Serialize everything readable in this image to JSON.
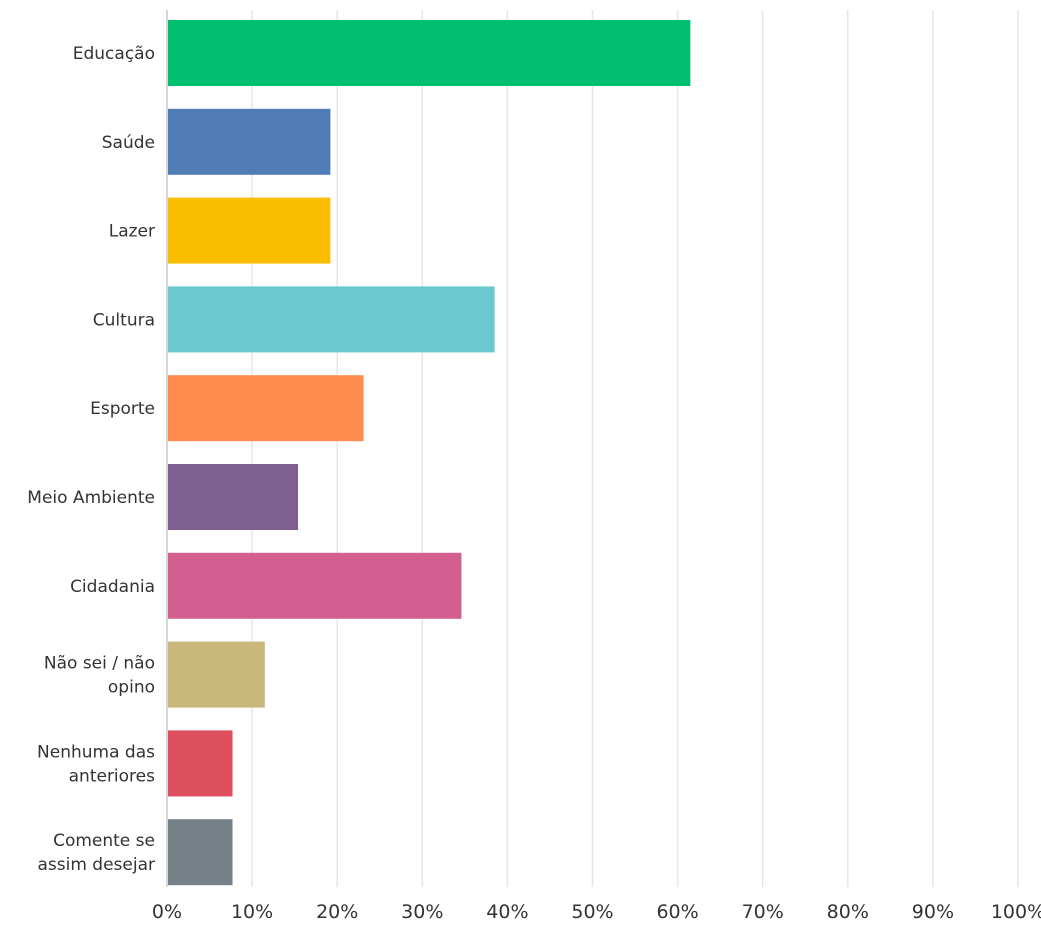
{
  "chart_data": {
    "type": "bar",
    "orientation": "horizontal",
    "categories": [
      [
        "Educação"
      ],
      [
        "Saúde"
      ],
      [
        "Lazer"
      ],
      [
        "Cultura"
      ],
      [
        "Esporte"
      ],
      [
        "Meio Ambiente"
      ],
      [
        "Cidadania"
      ],
      [
        "Não sei / não",
        "opino"
      ],
      [
        "Nenhuma das",
        "anteriores"
      ],
      [
        "Comente se",
        "assim desejar"
      ]
    ],
    "values": [
      61.5,
      19.2,
      19.2,
      38.5,
      23.1,
      15.4,
      34.6,
      11.5,
      7.7,
      7.7
    ],
    "colors": [
      "#00bf6f",
      "#507cb6",
      "#f9be00",
      "#6bc8cd",
      "#ff8b4f",
      "#7f5f90",
      "#d25f90",
      "#c9b77b",
      "#dd4f5e",
      "#758087"
    ],
    "xlim": [
      0,
      100
    ],
    "xticks": [
      0,
      10,
      20,
      30,
      40,
      50,
      60,
      70,
      80,
      90,
      100
    ],
    "xtick_suffix": "%",
    "grid": true,
    "title": "",
    "xlabel": "",
    "ylabel": ""
  },
  "style": {
    "grid_color": "#e6e6e6",
    "axis_color": "#c8c8c8",
    "label_color": "#333333"
  }
}
